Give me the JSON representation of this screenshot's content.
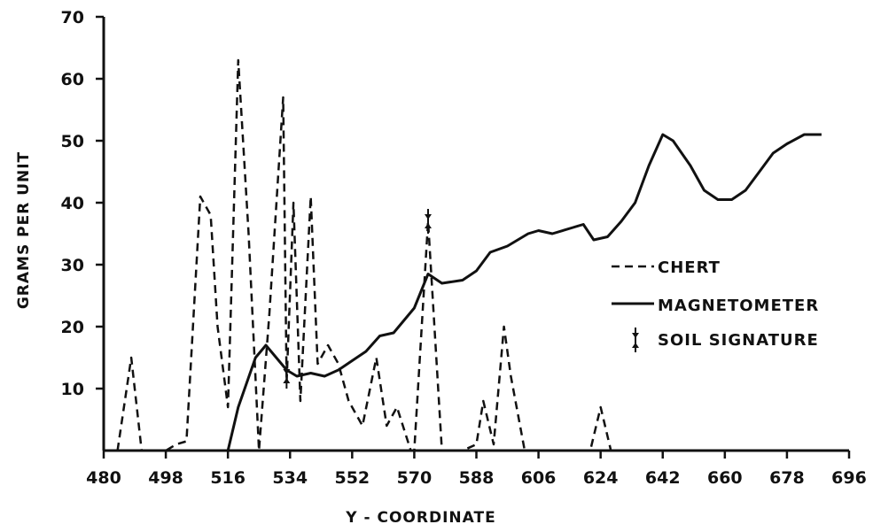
{
  "chart_data": {
    "type": "line",
    "title": "",
    "xlabel": "Y - COORDINATE",
    "ylabel": "GRAMS PER UNIT",
    "xlim": [
      480,
      696
    ],
    "ylim": [
      0,
      70
    ],
    "x_ticks": [
      "480",
      "498",
      "516",
      "534",
      "552",
      "570",
      "588",
      "606",
      "624",
      "642",
      "660",
      "678",
      "696"
    ],
    "y_ticks": [
      "10",
      "20",
      "30",
      "40",
      "50",
      "60",
      "70"
    ],
    "grid": false,
    "legend_position": "right",
    "series": [
      {
        "name": "CHERT",
        "style": "dashed",
        "x": [
          484,
          488,
          491,
          498,
          501,
          504,
          508,
          511,
          513,
          516,
          519,
          522,
          525,
          528,
          532,
          533,
          535,
          537,
          540,
          542,
          545,
          548,
          551,
          555,
          559,
          562,
          565,
          569,
          570,
          574,
          578,
          581,
          584,
          588,
          590,
          593,
          596,
          598,
          602,
          605,
          608,
          621,
          624,
          627
        ],
        "y": [
          0,
          15,
          0,
          0,
          1,
          1.5,
          41,
          38,
          20,
          7,
          63,
          35,
          0,
          22,
          57,
          11,
          40,
          8,
          41,
          14,
          17,
          14,
          8,
          4,
          15,
          4,
          7,
          0,
          0,
          37,
          0,
          0,
          0,
          1,
          8,
          1,
          20,
          12,
          0,
          0,
          0,
          0,
          7,
          0
        ]
      },
      {
        "name": "MAGNETOMETER",
        "style": "solid",
        "x": [
          516,
          519,
          524,
          527,
          530,
          533,
          536,
          540,
          544,
          548,
          552,
          556,
          560,
          564,
          570,
          574,
          578,
          584,
          588,
          592,
          597,
          603,
          606,
          610,
          616,
          619,
          622,
          626,
          630,
          634,
          638,
          642,
          645,
          650,
          654,
          658,
          662,
          666,
          670,
          674,
          678,
          683,
          688
        ],
        "y": [
          0,
          7,
          15,
          17,
          15,
          13,
          12,
          12.5,
          12,
          13,
          14.5,
          16,
          18.5,
          19,
          23,
          28.5,
          27,
          27.5,
          29,
          32,
          33,
          35,
          35.5,
          35,
          36,
          36.5,
          34,
          34.5,
          37,
          40,
          46,
          51,
          50,
          46,
          42,
          40.5,
          40.5,
          42,
          45,
          48,
          49.5,
          51,
          51
        ]
      }
    ],
    "error_bars": [
      {
        "x": 533,
        "y": 12
      },
      {
        "x": 574,
        "y": 37
      }
    ],
    "legend": [
      {
        "label": "CHERT",
        "style": "dashed"
      },
      {
        "label": "MAGNETOMETER",
        "style": "solid"
      },
      {
        "label": "SOIL SIGNATURE",
        "style": "marker"
      }
    ]
  }
}
